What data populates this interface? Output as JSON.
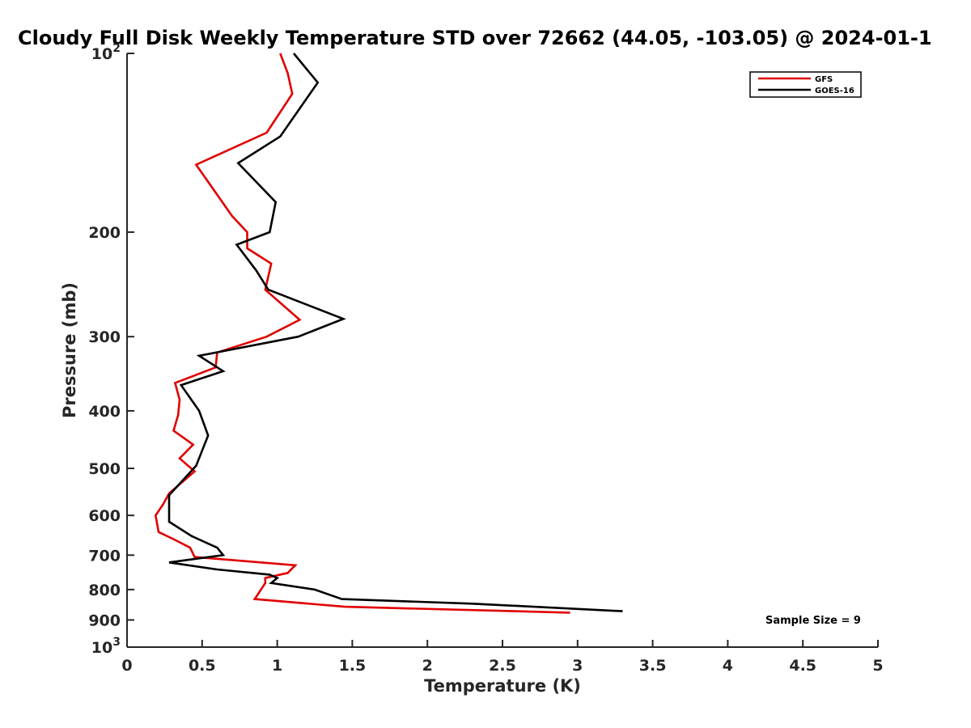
{
  "chart_data": {
    "type": "line",
    "title": "Cloudy Full Disk Weekly Temperature STD over 72662 (44.05, -103.05) @ 2024-01-1",
    "xlabel": "Temperature (K)",
    "ylabel": "Pressure (mb)",
    "xlim": [
      0,
      5
    ],
    "ylim": [
      1000,
      100
    ],
    "y_scale": "log",
    "y_reversed": true,
    "grid": false,
    "legend_position": "top-right",
    "x_ticks": [
      0,
      0.5,
      1,
      1.5,
      2,
      2.5,
      3,
      3.5,
      4,
      4.5,
      5
    ],
    "x_tick_labels": [
      "0",
      "0.5",
      "1",
      "1.5",
      "2",
      "2.5",
      "3",
      "3.5",
      "4",
      "4.5",
      "5"
    ],
    "y_ticks": [
      100,
      200,
      300,
      400,
      500,
      600,
      700,
      800,
      900,
      1000
    ],
    "y_tick_labels": [
      {
        "base": "10",
        "exp": "2"
      },
      {
        "base": "200",
        "exp": ""
      },
      {
        "base": "300",
        "exp": ""
      },
      {
        "base": "400",
        "exp": ""
      },
      {
        "base": "500",
        "exp": ""
      },
      {
        "base": "600",
        "exp": ""
      },
      {
        "base": "700",
        "exp": ""
      },
      {
        "base": "800",
        "exp": ""
      },
      {
        "base": "900",
        "exp": ""
      },
      {
        "base": "10",
        "exp": "3"
      }
    ],
    "series": [
      {
        "name": "GFS",
        "color": "#e00000",
        "points": [
          [
            1.02,
            100
          ],
          [
            1.07,
            108
          ],
          [
            1.1,
            117
          ],
          [
            0.93,
            136
          ],
          [
            0.46,
            154
          ],
          [
            0.7,
            188
          ],
          [
            0.8,
            200
          ],
          [
            0.8,
            213
          ],
          [
            0.96,
            226
          ],
          [
            0.92,
            250
          ],
          [
            1.15,
            281
          ],
          [
            0.93,
            300
          ],
          [
            0.6,
            319
          ],
          [
            0.59,
            338
          ],
          [
            0.32,
            359
          ],
          [
            0.35,
            383
          ],
          [
            0.34,
            407
          ],
          [
            0.31,
            432
          ],
          [
            0.44,
            456
          ],
          [
            0.35,
            481
          ],
          [
            0.45,
            506
          ],
          [
            0.28,
            551
          ],
          [
            0.24,
            575
          ],
          [
            0.19,
            600
          ],
          [
            0.21,
            640
          ],
          [
            0.32,
            660
          ],
          [
            0.42,
            680
          ],
          [
            0.45,
            705
          ],
          [
            1.12,
            728
          ],
          [
            1.07,
            750
          ],
          [
            0.92,
            765
          ],
          [
            0.92,
            780
          ],
          [
            0.85,
            830
          ],
          [
            1.45,
            855
          ],
          [
            2.95,
            875
          ]
        ]
      },
      {
        "name": "GOES-16",
        "color": "#000000",
        "points": [
          [
            1.11,
            100
          ],
          [
            1.27,
            112
          ],
          [
            1.02,
            138
          ],
          [
            0.74,
            153
          ],
          [
            0.99,
            178
          ],
          [
            0.95,
            200
          ],
          [
            0.73,
            210
          ],
          [
            0.86,
            232
          ],
          [
            0.94,
            250
          ],
          [
            1.44,
            280
          ],
          [
            1.14,
            300
          ],
          [
            0.48,
            323
          ],
          [
            0.64,
            343
          ],
          [
            0.36,
            362
          ],
          [
            0.48,
            400
          ],
          [
            0.54,
            440
          ],
          [
            0.46,
            495
          ],
          [
            0.28,
            555
          ],
          [
            0.28,
            585
          ],
          [
            0.28,
            615
          ],
          [
            0.43,
            650
          ],
          [
            0.6,
            680
          ],
          [
            0.64,
            700
          ],
          [
            0.28,
            720
          ],
          [
            0.6,
            740
          ],
          [
            0.95,
            755
          ],
          [
            1.0,
            765
          ],
          [
            0.96,
            780
          ],
          [
            1.25,
            800
          ],
          [
            1.43,
            830
          ],
          [
            2.3,
            845
          ],
          [
            3.3,
            870
          ]
        ]
      }
    ],
    "annotation": "Sample Size = 9"
  }
}
